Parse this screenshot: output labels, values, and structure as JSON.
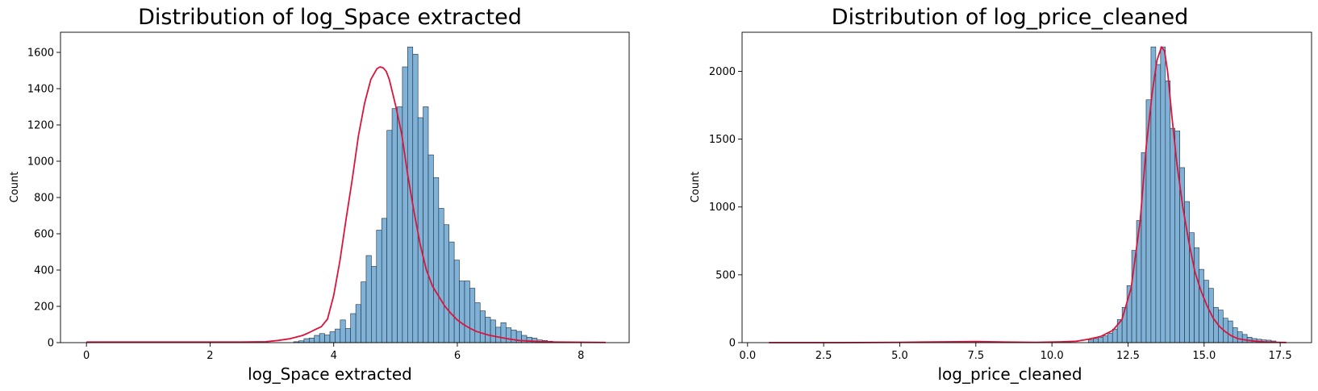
{
  "figure": {
    "background": "#ffffff"
  },
  "chart_data": [
    {
      "type": "bar",
      "subtype": "histogram-with-kde",
      "title": "Distribution of log_Space extracted",
      "xlabel": "log_Space extracted",
      "ylabel": "Count",
      "xlim": [
        -0.42,
        8.78
      ],
      "ylim": [
        0,
        1711
      ],
      "xticks": [
        0,
        2,
        4,
        6,
        8
      ],
      "xtick_labels": [
        "0",
        "2",
        "4",
        "6",
        "8"
      ],
      "yticks": [
        0,
        200,
        400,
        600,
        800,
        1000,
        1200,
        1400,
        1600
      ],
      "ytick_labels": [
        "0",
        "200",
        "400",
        "600",
        "800",
        "1000",
        "1200",
        "1400",
        "1600"
      ],
      "grid": false,
      "bar_color": "#7fb2d6",
      "bar_edge_color": "#1f2f3f",
      "kde_color": "#dc143c",
      "bins": {
        "start": 0.0,
        "width": 0.0838,
        "counts": [
          2,
          0,
          0,
          0,
          0,
          0,
          0,
          0,
          0,
          0,
          0,
          0,
          0,
          0,
          0,
          0,
          0,
          0,
          0,
          0,
          0,
          0,
          0,
          0,
          0,
          0,
          0,
          0,
          0,
          0,
          0,
          0,
          0,
          0,
          0,
          0,
          0,
          0,
          0,
          0,
          5,
          10,
          22,
          25,
          40,
          50,
          42,
          60,
          75,
          125,
          78,
          160,
          210,
          335,
          480,
          420,
          620,
          685,
          1170,
          1290,
          1300,
          1520,
          1630,
          1590,
          1240,
          1300,
          1035,
          910,
          740,
          650,
          555,
          455,
          340,
          340,
          300,
          220,
          175,
          140,
          125,
          85,
          110,
          82,
          70,
          62,
          40,
          30,
          25,
          15,
          12,
          8,
          4,
          3,
          3,
          2,
          1,
          1,
          1,
          0,
          0,
          1
        ]
      },
      "kde": {
        "x": [
          0.0,
          1.0,
          2.0,
          2.5,
          2.9,
          3.1,
          3.3,
          3.5,
          3.6,
          3.7,
          3.8,
          3.9,
          4.0,
          4.1,
          4.2,
          4.3,
          4.4,
          4.5,
          4.6,
          4.7,
          4.75,
          4.8,
          4.85,
          4.9,
          5.0,
          5.1,
          5.2,
          5.3,
          5.4,
          5.5,
          5.6,
          5.7,
          5.8,
          5.9,
          6.0,
          6.1,
          6.2,
          6.3,
          6.4,
          6.5,
          6.6,
          6.8,
          7.0,
          7.3,
          7.6,
          8.0,
          8.4
        ],
        "y": [
          3,
          3,
          3,
          3,
          5,
          12,
          22,
          40,
          55,
          72,
          88,
          130,
          260,
          450,
          680,
          900,
          1140,
          1320,
          1450,
          1510,
          1520,
          1515,
          1495,
          1450,
          1310,
          1150,
          920,
          720,
          540,
          400,
          310,
          255,
          200,
          160,
          125,
          100,
          80,
          63,
          52,
          42,
          35,
          22,
          12,
          6,
          3,
          2,
          1
        ]
      }
    },
    {
      "type": "bar",
      "subtype": "histogram-with-kde",
      "title": "Distribution of log_price_cleaned",
      "xlabel": "log_price_cleaned",
      "ylabel": "Count",
      "xlim": [
        -0.18,
        18.53
      ],
      "ylim": [
        0,
        2288
      ],
      "xticks": [
        0.0,
        2.5,
        5.0,
        7.5,
        10.0,
        12.5,
        15.0,
        17.5
      ],
      "xtick_labels": [
        "0.0",
        "2.5",
        "5.0",
        "7.5",
        "10.0",
        "12.5",
        "15.0",
        "17.5"
      ],
      "yticks": [
        0,
        500,
        1000,
        1500,
        2000
      ],
      "ytick_labels": [
        "0",
        "500",
        "1000",
        "1500",
        "2000"
      ],
      "grid": false,
      "bar_color": "#7fb2d6",
      "bar_edge_color": "#1f2f3f",
      "kde_color": "#dc143c",
      "bins": {
        "start": 11.2,
        "width": 0.158,
        "counts": [
          20,
          30,
          40,
          50,
          70,
          100,
          170,
          260,
          420,
          680,
          900,
          1400,
          1790,
          2180,
          2050,
          2180,
          1930,
          1580,
          1560,
          1290,
          1040,
          810,
          700,
          540,
          460,
          400,
          260,
          240,
          180,
          160,
          110,
          80,
          60,
          40,
          30,
          25,
          20,
          18,
          12
        ]
      },
      "kde": {
        "x": [
          0.7,
          3.0,
          5.0,
          6.5,
          7.5,
          8.5,
          9.5,
          10.3,
          10.8,
          11.2,
          11.6,
          12.0,
          12.3,
          12.6,
          12.9,
          13.1,
          13.3,
          13.45,
          13.6,
          13.7,
          13.8,
          13.95,
          14.1,
          14.3,
          14.5,
          14.7,
          14.9,
          15.1,
          15.3,
          15.5,
          15.7,
          15.9,
          16.1,
          16.4,
          16.7,
          17.0,
          17.4,
          17.7
        ],
        "y": [
          0,
          0,
          2,
          6,
          8,
          4,
          2,
          6,
          10,
          25,
          45,
          90,
          170,
          400,
          900,
          1450,
          1850,
          2080,
          2180,
          2150,
          2000,
          1650,
          1330,
          1000,
          740,
          520,
          380,
          270,
          180,
          120,
          80,
          50,
          30,
          18,
          10,
          5,
          2,
          1
        ]
      }
    }
  ]
}
